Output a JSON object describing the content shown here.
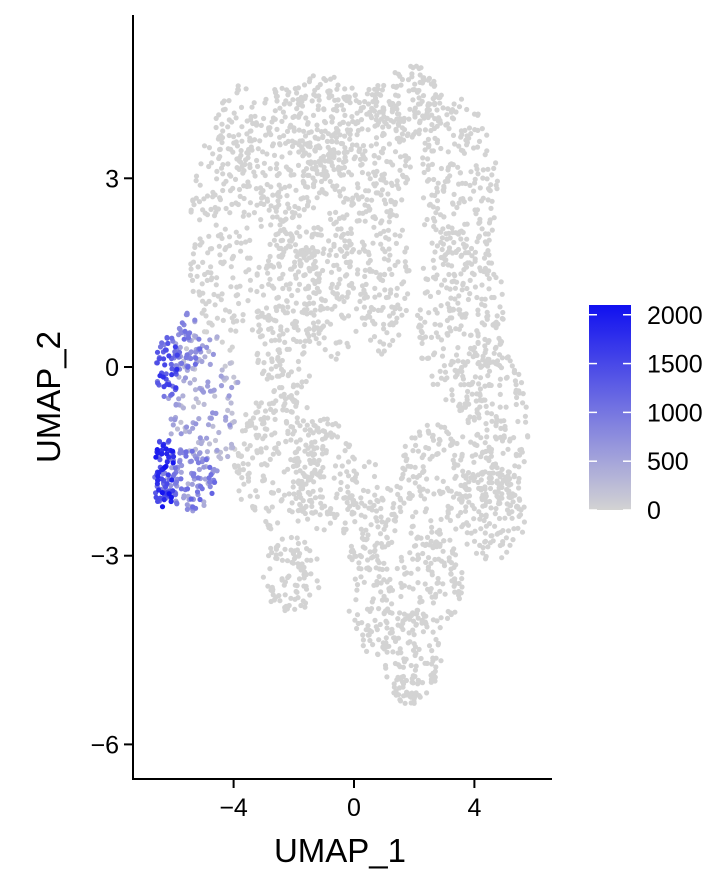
{
  "chart_data": {
    "type": "scatter",
    "title": "",
    "xlabel": "UMAP_1",
    "ylabel": "UMAP_2",
    "xlim": [
      -7.2,
      6.6
    ],
    "ylim": [
      -6.7,
      5.4
    ],
    "x_ticks": [
      -4,
      0,
      4
    ],
    "y_ticks": [
      -6,
      -3,
      0,
      3
    ],
    "x_tick_labels": [
      "−4",
      "0",
      "4"
    ],
    "y_tick_labels": [
      "−6",
      "−3",
      "0",
      "3"
    ],
    "grid": false,
    "legend": {
      "type": "colorbar",
      "placement": "right",
      "min": 0,
      "max": 2100,
      "ticks": [
        0,
        500,
        1000,
        1500,
        2000
      ],
      "tick_labels": [
        "0",
        "500",
        "1000",
        "1500",
        "2000"
      ]
    },
    "colors": {
      "low": "#d3d3d3",
      "high": "#1010f0"
    },
    "series": [
      {
        "regions": [
          {
            "cx": -4.4,
            "cy": 2.0,
            "rx": 1.1,
            "ry": 1.8,
            "n": 170
          },
          {
            "cx": -3.9,
            "cy": 3.6,
            "rx": 0.8,
            "ry": 0.9,
            "n": 70
          },
          {
            "cx": -2.2,
            "cy": 3.2,
            "rx": 1.4,
            "ry": 1.3,
            "n": 210
          },
          {
            "cx": -1.0,
            "cy": 3.8,
            "rx": 1.0,
            "ry": 0.9,
            "n": 130
          },
          {
            "cx": 0.5,
            "cy": 3.4,
            "rx": 1.4,
            "ry": 1.2,
            "n": 220
          },
          {
            "cx": 1.8,
            "cy": 4.2,
            "rx": 1.2,
            "ry": 0.6,
            "n": 120
          },
          {
            "cx": 3.5,
            "cy": 2.9,
            "rx": 1.3,
            "ry": 1.4,
            "n": 190
          },
          {
            "cx": -2.2,
            "cy": 0.8,
            "rx": 1.2,
            "ry": 1.4,
            "n": 230
          },
          {
            "cx": -0.7,
            "cy": 1.3,
            "rx": 1.0,
            "ry": 1.2,
            "n": 140
          },
          {
            "cx": 1.0,
            "cy": 1.4,
            "rx": 0.9,
            "ry": 1.2,
            "n": 120
          },
          {
            "cx": 3.5,
            "cy": 0.8,
            "rx": 1.5,
            "ry": 1.5,
            "n": 270
          },
          {
            "cx": 4.7,
            "cy": -1.0,
            "rx": 1.1,
            "ry": 1.3,
            "n": 170
          },
          {
            "cx": 4.6,
            "cy": -2.3,
            "rx": 1.1,
            "ry": 0.8,
            "n": 140
          },
          {
            "cx": 2.6,
            "cy": -1.9,
            "rx": 1.2,
            "ry": 1.0,
            "n": 150
          },
          {
            "cx": -2.5,
            "cy": -1.5,
            "rx": 1.5,
            "ry": 1.1,
            "n": 200
          },
          {
            "cx": -1.0,
            "cy": -1.7,
            "rx": 1.1,
            "ry": 0.9,
            "n": 120
          },
          {
            "cx": 0.5,
            "cy": -2.4,
            "rx": 0.9,
            "ry": 0.9,
            "n": 110
          },
          {
            "cx": -2.1,
            "cy": -3.3,
            "rx": 1.0,
            "ry": 0.6,
            "n": 90
          },
          {
            "cx": 0.7,
            "cy": -3.8,
            "rx": 0.9,
            "ry": 0.8,
            "n": 80
          },
          {
            "cx": 2.5,
            "cy": -3.4,
            "rx": 1.1,
            "ry": 0.8,
            "n": 110
          },
          {
            "cx": 1.9,
            "cy": -4.6,
            "rx": 1.0,
            "ry": 0.7,
            "n": 100
          },
          {
            "cx": 1.8,
            "cy": -5.1,
            "rx": 0.5,
            "ry": 0.3,
            "n": 30
          },
          {
            "cx": -5.0,
            "cy": -0.6,
            "rx": 1.2,
            "ry": 1.2,
            "n": 130,
            "value_range": [
              100,
              700
            ]
          },
          {
            "cx": -5.6,
            "cy": 0.4,
            "rx": 0.5,
            "ry": 0.5,
            "n": 45,
            "value_range": [
              400,
              1200
            ]
          },
          {
            "cx": -6.2,
            "cy": 0.0,
            "rx": 0.4,
            "ry": 0.5,
            "n": 55,
            "value_range": [
              700,
              1800
            ]
          },
          {
            "cx": -5.5,
            "cy": -1.8,
            "rx": 0.9,
            "ry": 0.5,
            "n": 110,
            "value_range": [
              300,
              1200
            ]
          },
          {
            "cx": -6.3,
            "cy": -1.7,
            "rx": 0.35,
            "ry": 0.6,
            "n": 75,
            "value_range": [
              900,
              2100
            ]
          }
        ]
      }
    ]
  }
}
